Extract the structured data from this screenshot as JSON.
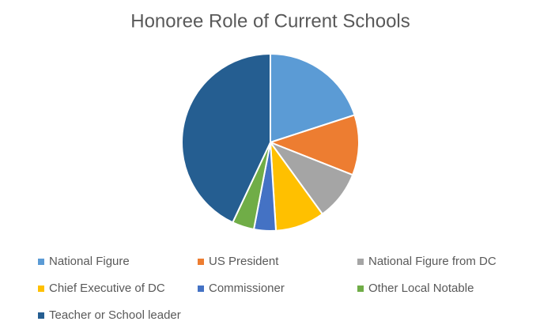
{
  "chart_data": {
    "type": "pie",
    "title": "Honoree Role of Current Schools",
    "categories": [
      "National Figure",
      "US President",
      "National Figure from DC",
      "Chief Executive of DC",
      "Commissioner",
      "Other Local Notable",
      "Teacher or School leader"
    ],
    "values": [
      20,
      11,
      9,
      9,
      4,
      4,
      43
    ],
    "colors": [
      "#5b9bd5",
      "#ed7d31",
      "#a5a5a5",
      "#ffc000",
      "#4472c4",
      "#70ad47",
      "#255e91"
    ],
    "legend": "bottom"
  }
}
